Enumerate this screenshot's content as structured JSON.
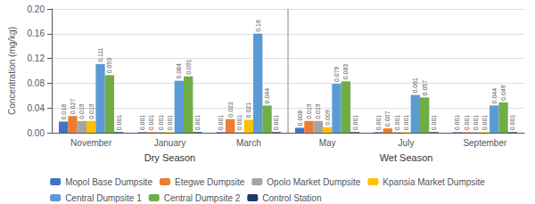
{
  "chart_data": {
    "type": "bar",
    "categories": [
      "November",
      "January",
      "March",
      "May",
      "July",
      "September"
    ],
    "series": [
      {
        "name": "Mopol Base Dumpsite",
        "color": "#4472C4",
        "values": [
          0.018,
          0.001,
          0.001,
          0.008,
          0.001,
          0.001
        ]
      },
      {
        "name": "Etegwe Dumpsite",
        "color": "#ED7D31",
        "values": [
          0.027,
          0.001,
          0.022,
          0.019,
          0.007,
          0.001
        ]
      },
      {
        "name": "Opolo Market Dumpsite",
        "color": "#A5A5A5",
        "values": [
          0.019,
          0.001,
          0.001,
          0.019,
          0.001,
          0.001
        ]
      },
      {
        "name": "Kpansia Market Dumpsite",
        "color": "#FFC000",
        "values": [
          0.019,
          0.001,
          0.021,
          0.009,
          0.001,
          0.001
        ]
      },
      {
        "name": "Central Dumpsite 1",
        "color": "#5B9BD5",
        "values": [
          0.111,
          0.084,
          0.16,
          0.079,
          0.061,
          0.044
        ]
      },
      {
        "name": "Central Dumpsite 2",
        "color": "#70AD47",
        "values": [
          0.093,
          0.091,
          0.044,
          0.083,
          0.057,
          0.049
        ]
      },
      {
        "name": "Control Station",
        "color": "#203864",
        "values": [
          0.001,
          0.001,
          0.001,
          0.001,
          0.001,
          0.001
        ]
      }
    ],
    "ylabel": "Concentration (mg/kg)",
    "ylim": [
      0,
      0.2
    ],
    "yticks": [
      {
        "value": 0,
        "label": "0.00"
      },
      0.04,
      0.08,
      0.12,
      0.16,
      {
        "value": 0.2,
        "label": "0.20"
      }
    ],
    "grid": true,
    "legend": "bottom",
    "data_labels": true,
    "annotations": [
      {
        "text": "Dry Season",
        "x": "January"
      },
      {
        "text": "Wet Season",
        "x": "July"
      }
    ]
  }
}
